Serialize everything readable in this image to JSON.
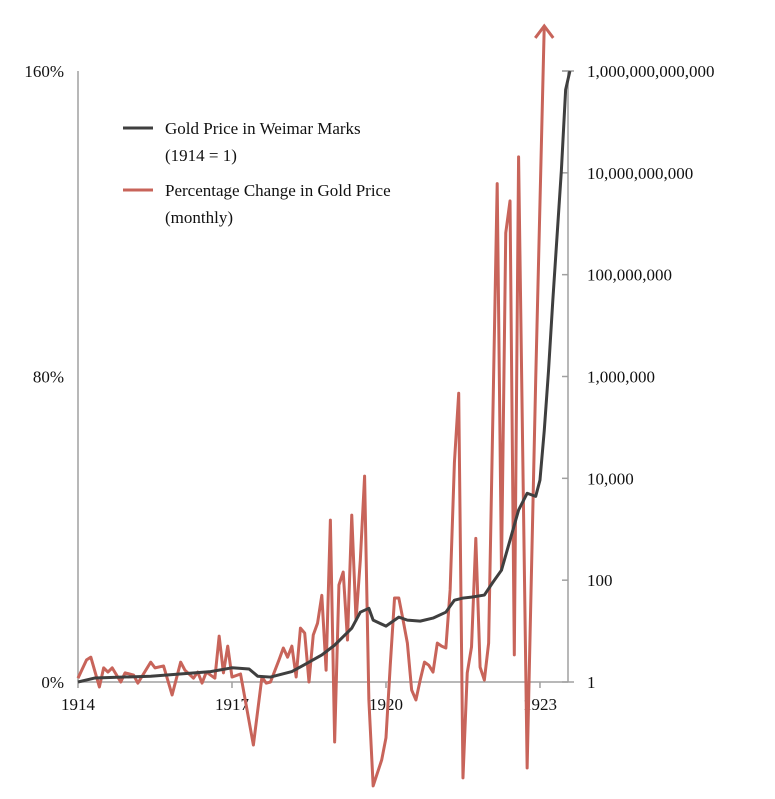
{
  "chart_data": {
    "type": "line",
    "title": "",
    "xlabel": "",
    "ylabel_left": "",
    "ylabel_right": "",
    "left_axis": {
      "ticks": [
        "0%",
        "80%",
        "160%"
      ],
      "range": [
        0,
        160
      ]
    },
    "right_axis": {
      "scale": "log",
      "ticks": [
        "1",
        "100",
        "10,000",
        "1,000,000",
        "100,000,000",
        "10,000,000,000",
        "1,000,000,000,000"
      ],
      "range": [
        1,
        1000000000000
      ]
    },
    "x_ticks": [
      "1914",
      "1917",
      "1920",
      "1923"
    ],
    "grid": false,
    "legend_placement": "top-left",
    "colors": {
      "gold_price": "#3f3f3f",
      "pct_change": "#c8645a",
      "axis": "#a0a0a0"
    },
    "series": [
      {
        "name": "Gold Price in Weimar Marks",
        "name_line2": "(1914 = 1)",
        "axis": "right",
        "points": [
          [
            "1914-01",
            1
          ],
          [
            "1914-05",
            1.2
          ],
          [
            "1915-06",
            1.3
          ],
          [
            "1916-08",
            1.6
          ],
          [
            "1917-01",
            1.9
          ],
          [
            "1917-05",
            1.8
          ],
          [
            "1917-07",
            1.3
          ],
          [
            "1917-10",
            1.25
          ],
          [
            "1918-03",
            1.6
          ],
          [
            "1918-06",
            2.2
          ],
          [
            "1918-10",
            3.4
          ],
          [
            "1919-01",
            5.3
          ],
          [
            "1919-05",
            11.4
          ],
          [
            "1919-07",
            23.5
          ],
          [
            "1919-09",
            28
          ],
          [
            "1919-10",
            16.4
          ],
          [
            "1920-01",
            12.5
          ],
          [
            "1920-04",
            18.8
          ],
          [
            "1920-06",
            16.4
          ],
          [
            "1920-09",
            15.7
          ],
          [
            "1920-12",
            18
          ],
          [
            "1921-03",
            23.5
          ],
          [
            "1921-05",
            40.5
          ],
          [
            "1921-07",
            44.5
          ],
          [
            "1921-09",
            46.5
          ],
          [
            "1921-12",
            51
          ],
          [
            "1922-02",
            91
          ],
          [
            "1922-04",
            157
          ],
          [
            "1922-06",
            610
          ],
          [
            "1922-08",
            2380
          ],
          [
            "1922-10",
            5090
          ],
          [
            "1922-12",
            4420
          ],
          [
            "1923-01",
            9200
          ],
          [
            "1923-02",
            86000
          ],
          [
            "1923-03",
            1300000
          ],
          [
            "1923-04",
            31000000
          ],
          [
            "1923-06",
            11000000000
          ],
          [
            "1923-07",
            430000000000
          ],
          [
            "1923-08",
            1000000000000
          ]
        ]
      },
      {
        "name": "Percentage Change in Gold Price",
        "name_line2": "(monthly)",
        "axis": "left",
        "points": [
          [
            "1914-01",
            1.0
          ],
          [
            "1914-03",
            5.8
          ],
          [
            "1914-04",
            6.5
          ],
          [
            "1914-06",
            -1.3
          ],
          [
            "1914-07",
            3.7
          ],
          [
            "1914-08",
            2.6
          ],
          [
            "1914-09",
            3.7
          ],
          [
            "1914-11",
            0
          ],
          [
            "1914-12",
            2.4
          ],
          [
            "1915-02",
            1.8
          ],
          [
            "1915-03",
            -0.3
          ],
          [
            "1915-06",
            5.2
          ],
          [
            "1915-07",
            3.7
          ],
          [
            "1915-09",
            4.2
          ],
          [
            "1915-11",
            -3.4
          ],
          [
            "1916-01",
            5.2
          ],
          [
            "1916-02",
            3.1
          ],
          [
            "1916-04",
            1.0
          ],
          [
            "1916-05",
            2.6
          ],
          [
            "1916-06",
            -0.3
          ],
          [
            "1916-07",
            2.6
          ],
          [
            "1916-09",
            1.0
          ],
          [
            "1916-10",
            12.0
          ],
          [
            "1916-11",
            2.4
          ],
          [
            "1916-12",
            9.4
          ],
          [
            "1917-01",
            1.3
          ],
          [
            "1917-03",
            2.1
          ],
          [
            "1917-06",
            -16.5
          ],
          [
            "1917-08",
            1.3
          ],
          [
            "1917-09",
            -0.3
          ],
          [
            "1917-10",
            0
          ],
          [
            "1917-12",
            5.8
          ],
          [
            "1918-01",
            8.9
          ],
          [
            "1918-02",
            6.5
          ],
          [
            "1918-03",
            9.4
          ],
          [
            "1918-04",
            1.3
          ],
          [
            "1918-05",
            14.1
          ],
          [
            "1918-06",
            12.8
          ],
          [
            "1918-07",
            0
          ],
          [
            "1918-08",
            12.3
          ],
          [
            "1918-09",
            15.4
          ],
          [
            "1918-10",
            22.7
          ],
          [
            "1918-11",
            3.1
          ],
          [
            "1918-12",
            42.4
          ],
          [
            "1919-01",
            -15.7
          ],
          [
            "1919-02",
            25.4
          ],
          [
            "1919-03",
            28.8
          ],
          [
            "1919-04",
            11.0
          ],
          [
            "1919-05",
            43.7
          ],
          [
            "1919-06",
            16.2
          ],
          [
            "1919-07",
            31.9
          ],
          [
            "1919-08",
            53.9
          ],
          [
            "1919-09",
            -4.7
          ],
          [
            "1919-10",
            -27.2
          ],
          [
            "1919-12",
            -20.4
          ],
          [
            "1920-01",
            -14.6
          ],
          [
            "1920-02",
            4.4
          ],
          [
            "1920-03",
            22.0
          ],
          [
            "1920-04",
            22.0
          ],
          [
            "1920-05",
            16.2
          ],
          [
            "1920-06",
            10.2
          ],
          [
            "1920-07",
            -2.1
          ],
          [
            "1920-08",
            -4.7
          ],
          [
            "1920-09",
            0.5
          ],
          [
            "1920-10",
            5.2
          ],
          [
            "1920-11",
            4.4
          ],
          [
            "1920-12",
            2.6
          ],
          [
            "1921-01",
            10.2
          ],
          [
            "1921-02",
            9.4
          ],
          [
            "1921-03",
            8.9
          ],
          [
            "1921-04",
            24.1
          ],
          [
            "1921-05",
            57.5
          ],
          [
            "1921-06",
            75.6
          ],
          [
            "1921-07",
            -25.1
          ],
          [
            "1921-08",
            2.4
          ],
          [
            "1921-09",
            9.2
          ],
          [
            "1921-10",
            37.6
          ],
          [
            "1921-11",
            3.9
          ],
          [
            "1921-12",
            0.5
          ],
          [
            "1922-01",
            10.2
          ],
          [
            "1922-03",
            130.5
          ],
          [
            "1922-04",
            29.3
          ],
          [
            "1922-05",
            117.6
          ],
          [
            "1922-06",
            126
          ],
          [
            "1922-07",
            7.1
          ],
          [
            "1922-08",
            137.5
          ],
          [
            "1922-10",
            -22.5
          ],
          [
            "1922-12",
            79
          ],
          [
            "1923-02",
            171.8
          ]
        ]
      }
    ]
  }
}
